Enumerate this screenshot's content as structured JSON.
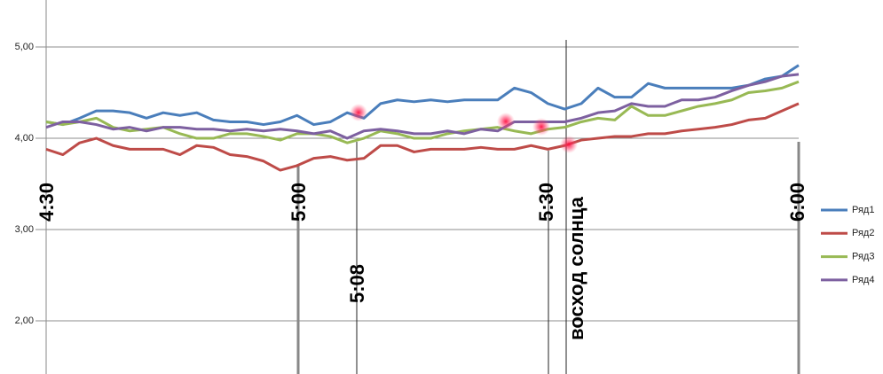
{
  "chart_data": {
    "type": "line",
    "series": [
      {
        "name": "Ряд1",
        "color": "#4a7ebb",
        "values": [
          4.18,
          4.15,
          4.22,
          4.3,
          4.3,
          4.28,
          4.22,
          4.28,
          4.25,
          4.28,
          4.2,
          4.18,
          4.18,
          4.15,
          4.18,
          4.25,
          4.15,
          4.18,
          4.28,
          4.22,
          4.38,
          4.42,
          4.4,
          4.42,
          4.4,
          4.42,
          4.42,
          4.42,
          4.55,
          4.5,
          4.38,
          4.32,
          4.38,
          4.55,
          4.45,
          4.45,
          4.6,
          4.55,
          4.55,
          4.55,
          4.55,
          4.55,
          4.58,
          4.65,
          4.68,
          4.8
        ]
      },
      {
        "name": "Ряд2",
        "color": "#be4b48",
        "values": [
          3.88,
          3.82,
          3.95,
          4.0,
          3.92,
          3.88,
          3.88,
          3.88,
          3.82,
          3.92,
          3.9,
          3.82,
          3.8,
          3.75,
          3.65,
          3.7,
          3.78,
          3.8,
          3.76,
          3.78,
          3.92,
          3.92,
          3.85,
          3.88,
          3.88,
          3.88,
          3.9,
          3.88,
          3.88,
          3.92,
          3.88,
          3.92,
          3.98,
          4.0,
          4.02,
          4.02,
          4.05,
          4.05,
          4.08,
          4.1,
          4.12,
          4.15,
          4.2,
          4.22,
          4.3,
          4.38
        ]
      },
      {
        "name": "Ряд3",
        "color": "#98b954",
        "values": [
          4.18,
          4.15,
          4.18,
          4.22,
          4.12,
          4.08,
          4.1,
          4.12,
          4.05,
          4.0,
          4.0,
          4.05,
          4.05,
          4.02,
          3.98,
          4.05,
          4.05,
          4.02,
          3.95,
          4.0,
          4.08,
          4.05,
          4.0,
          4.0,
          4.05,
          4.08,
          4.1,
          4.12,
          4.08,
          4.05,
          4.1,
          4.12,
          4.18,
          4.22,
          4.2,
          4.35,
          4.25,
          4.25,
          4.3,
          4.35,
          4.38,
          4.42,
          4.5,
          4.52,
          4.55,
          4.62
        ]
      },
      {
        "name": "Ряд4",
        "color": "#7d60a0",
        "values": [
          4.12,
          4.18,
          4.18,
          4.15,
          4.1,
          4.12,
          4.08,
          4.12,
          4.12,
          4.1,
          4.1,
          4.08,
          4.1,
          4.08,
          4.1,
          4.08,
          4.05,
          4.08,
          4.0,
          4.08,
          4.1,
          4.08,
          4.05,
          4.05,
          4.08,
          4.05,
          4.1,
          4.08,
          4.18,
          4.18,
          4.18,
          4.18,
          4.22,
          4.28,
          4.3,
          4.38,
          4.35,
          4.35,
          4.42,
          4.42,
          4.45,
          4.52,
          4.58,
          4.62,
          4.68,
          4.7
        ]
      }
    ],
    "ylim": [
      1.417,
      5.515
    ],
    "yticks": [
      {
        "value": 2,
        "label": "2,00"
      },
      {
        "value": 3,
        "label": "3,00"
      },
      {
        "value": 4,
        "label": "4,00"
      },
      {
        "value": 5,
        "label": "5,00"
      }
    ],
    "grid": true,
    "legend": "right",
    "annotations": [
      {
        "label": "4:30"
      },
      {
        "label": "5:00"
      },
      {
        "label": "5:08"
      },
      {
        "label": "5:30"
      },
      {
        "label": "восход солнца"
      },
      {
        "label": "6:00"
      }
    ]
  }
}
